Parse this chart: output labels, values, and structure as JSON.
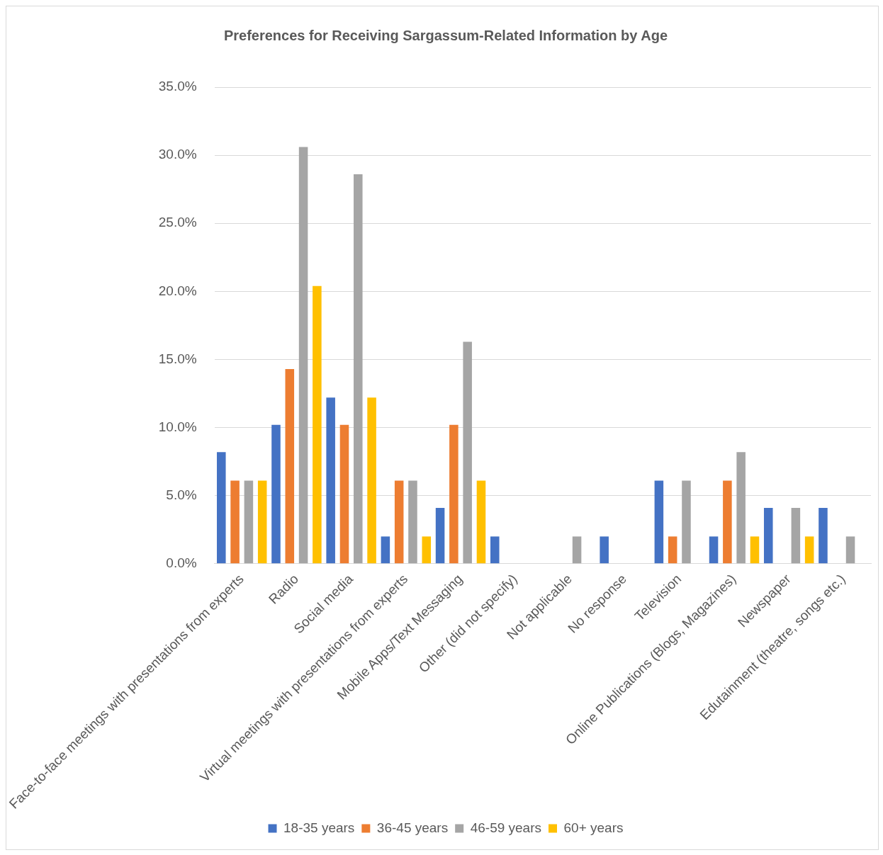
{
  "chart_data": {
    "type": "bar",
    "title": "Preferences for Receiving Sargassum-Related Information by Age",
    "categories": [
      "Face-to-face meetings with presentations from experts",
      "Radio",
      "Social media",
      "Virtual meetings with presentations from experts",
      "Mobile Apps/Text Messaging",
      "Other (did not specify)",
      "Not applicable",
      "No response",
      "Television",
      "Online Publications (Blogs, Magazines)",
      "Newspaper",
      "Edutainment (theatre, songs etc.)"
    ],
    "series": [
      {
        "name": "18-35 years",
        "color": "#4472c4",
        "values": [
          8.2,
          10.2,
          12.2,
          2.0,
          4.1,
          2.0,
          0,
          2.0,
          6.1,
          2.0,
          4.1,
          4.1
        ]
      },
      {
        "name": "36-45 years",
        "color": "#ed7d31",
        "values": [
          6.1,
          14.3,
          10.2,
          6.1,
          10.2,
          0,
          0,
          0,
          2.0,
          6.1,
          0,
          0
        ]
      },
      {
        "name": "46-59 years",
        "color": "#a5a5a5",
        "values": [
          6.1,
          30.6,
          28.6,
          6.1,
          16.3,
          0,
          2.0,
          0,
          6.1,
          8.2,
          4.1,
          2.0
        ]
      },
      {
        "name": "60+ years",
        "color": "#ffc000",
        "values": [
          6.1,
          20.4,
          12.2,
          2.0,
          6.1,
          0,
          0,
          0,
          0,
          2.0,
          2.0,
          0
        ]
      }
    ],
    "ylim": [
      0,
      35
    ],
    "yticks": [
      {
        "value": 0,
        "label": "0.0%"
      },
      {
        "value": 5,
        "label": "5.0%"
      },
      {
        "value": 10,
        "label": "10.0%"
      },
      {
        "value": 15,
        "label": "15.0%"
      },
      {
        "value": 20,
        "label": "20.0%"
      },
      {
        "value": 25,
        "label": "25.0%"
      },
      {
        "value": 30,
        "label": "30.0%"
      },
      {
        "value": 35,
        "label": "35.0%"
      }
    ],
    "grid": "y",
    "legend": "bottom"
  }
}
